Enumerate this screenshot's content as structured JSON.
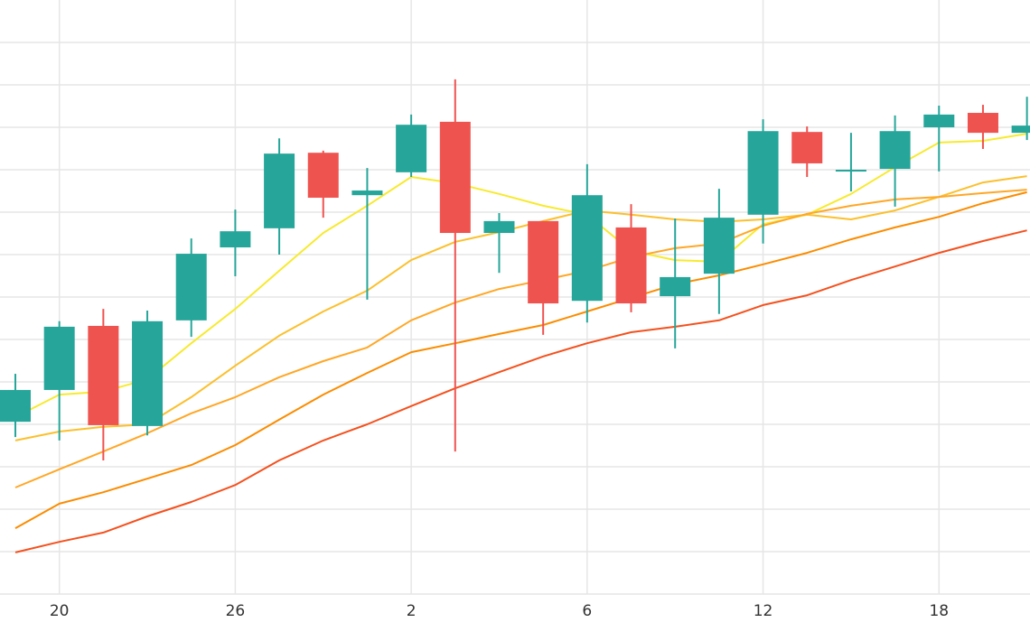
{
  "chart_data": {
    "type": "candlestick",
    "categories": [
      null,
      "20",
      null,
      null,
      null,
      "26",
      null,
      null,
      null,
      "2",
      null,
      null,
      null,
      "6",
      null,
      null,
      null,
      "12",
      null,
      null,
      null,
      "18",
      null,
      null
    ],
    "open": [
      4.06,
      4.81,
      6.32,
      3.96,
      6.45,
      8.17,
      8.62,
      10.4,
      9.4,
      9.94,
      11.13,
      8.51,
      8.79,
      6.91,
      8.64,
      7.02,
      7.55,
      8.94,
      10.89,
      9.96,
      10.02,
      11.0,
      11.34,
      10.87
    ],
    "high": [
      5.19,
      6.43,
      6.72,
      6.68,
      8.38,
      9.06,
      10.74,
      10.45,
      10.04,
      11.3,
      12.13,
      8.98,
      8.79,
      10.13,
      9.19,
      8.85,
      9.55,
      11.19,
      11.02,
      10.87,
      11.28,
      11.51,
      11.53,
      11.72
    ],
    "low": [
      3.7,
      3.62,
      3.15,
      3.74,
      6.06,
      7.49,
      8.0,
      8.87,
      6.94,
      9.83,
      3.36,
      7.57,
      6.11,
      6.4,
      6.64,
      5.79,
      6.6,
      8.26,
      9.83,
      9.49,
      9.13,
      9.96,
      10.49,
      10.7
    ],
    "close": [
      4.81,
      6.3,
      3.98,
      6.43,
      8.02,
      8.55,
      10.38,
      9.34,
      9.51,
      11.06,
      8.51,
      8.79,
      6.85,
      9.4,
      6.85,
      7.47,
      8.87,
      10.91,
      10.15,
      10.0,
      10.91,
      11.3,
      10.87,
      11.04
    ],
    "up_color": "#26a69a",
    "down_color": "#ef5350",
    "series": [
      {
        "color": "#f7ea2f",
        "values": [
          4.17,
          4.7,
          4.77,
          5.06,
          5.91,
          6.72,
          7.62,
          8.51,
          9.15,
          9.83,
          9.68,
          9.43,
          9.15,
          8.94,
          8.09,
          7.87,
          7.83,
          8.72,
          8.94,
          9.43,
          10.06,
          10.64,
          10.68,
          10.85
        ]
      },
      {
        "color": "#fbc02d",
        "values": [
          3.62,
          3.83,
          3.94,
          4.0,
          4.64,
          5.38,
          6.09,
          6.66,
          7.15,
          7.87,
          8.3,
          8.53,
          8.79,
          9.04,
          8.94,
          8.83,
          8.77,
          8.83,
          8.94,
          8.83,
          9.04,
          9.36,
          9.7,
          9.85
        ]
      },
      {
        "color": "#ffa726",
        "values": [
          2.51,
          2.94,
          3.36,
          3.79,
          4.26,
          4.64,
          5.11,
          5.49,
          5.81,
          6.45,
          6.87,
          7.19,
          7.4,
          7.62,
          7.94,
          8.15,
          8.26,
          8.68,
          8.96,
          9.15,
          9.3,
          9.36,
          9.45,
          9.53
        ]
      },
      {
        "color": "#fb8c00",
        "values": [
          1.55,
          2.13,
          2.4,
          2.72,
          3.04,
          3.51,
          4.11,
          4.7,
          5.21,
          5.7,
          5.91,
          6.13,
          6.34,
          6.66,
          6.98,
          7.3,
          7.51,
          7.77,
          8.04,
          8.36,
          8.64,
          8.89,
          9.21,
          9.47
        ]
      },
      {
        "color": "#f4511e",
        "values": [
          0.98,
          1.23,
          1.45,
          1.83,
          2.17,
          2.57,
          3.15,
          3.62,
          4.0,
          4.43,
          4.85,
          5.23,
          5.6,
          5.91,
          6.17,
          6.3,
          6.45,
          6.81,
          7.04,
          7.4,
          7.72,
          8.04,
          8.32,
          8.57
        ]
      }
    ],
    "ylim": [
      0,
      14
    ],
    "yticks": [
      0,
      1,
      2,
      3,
      4,
      5,
      6,
      7,
      8,
      9,
      10,
      11,
      12,
      13
    ],
    "grid": true
  }
}
